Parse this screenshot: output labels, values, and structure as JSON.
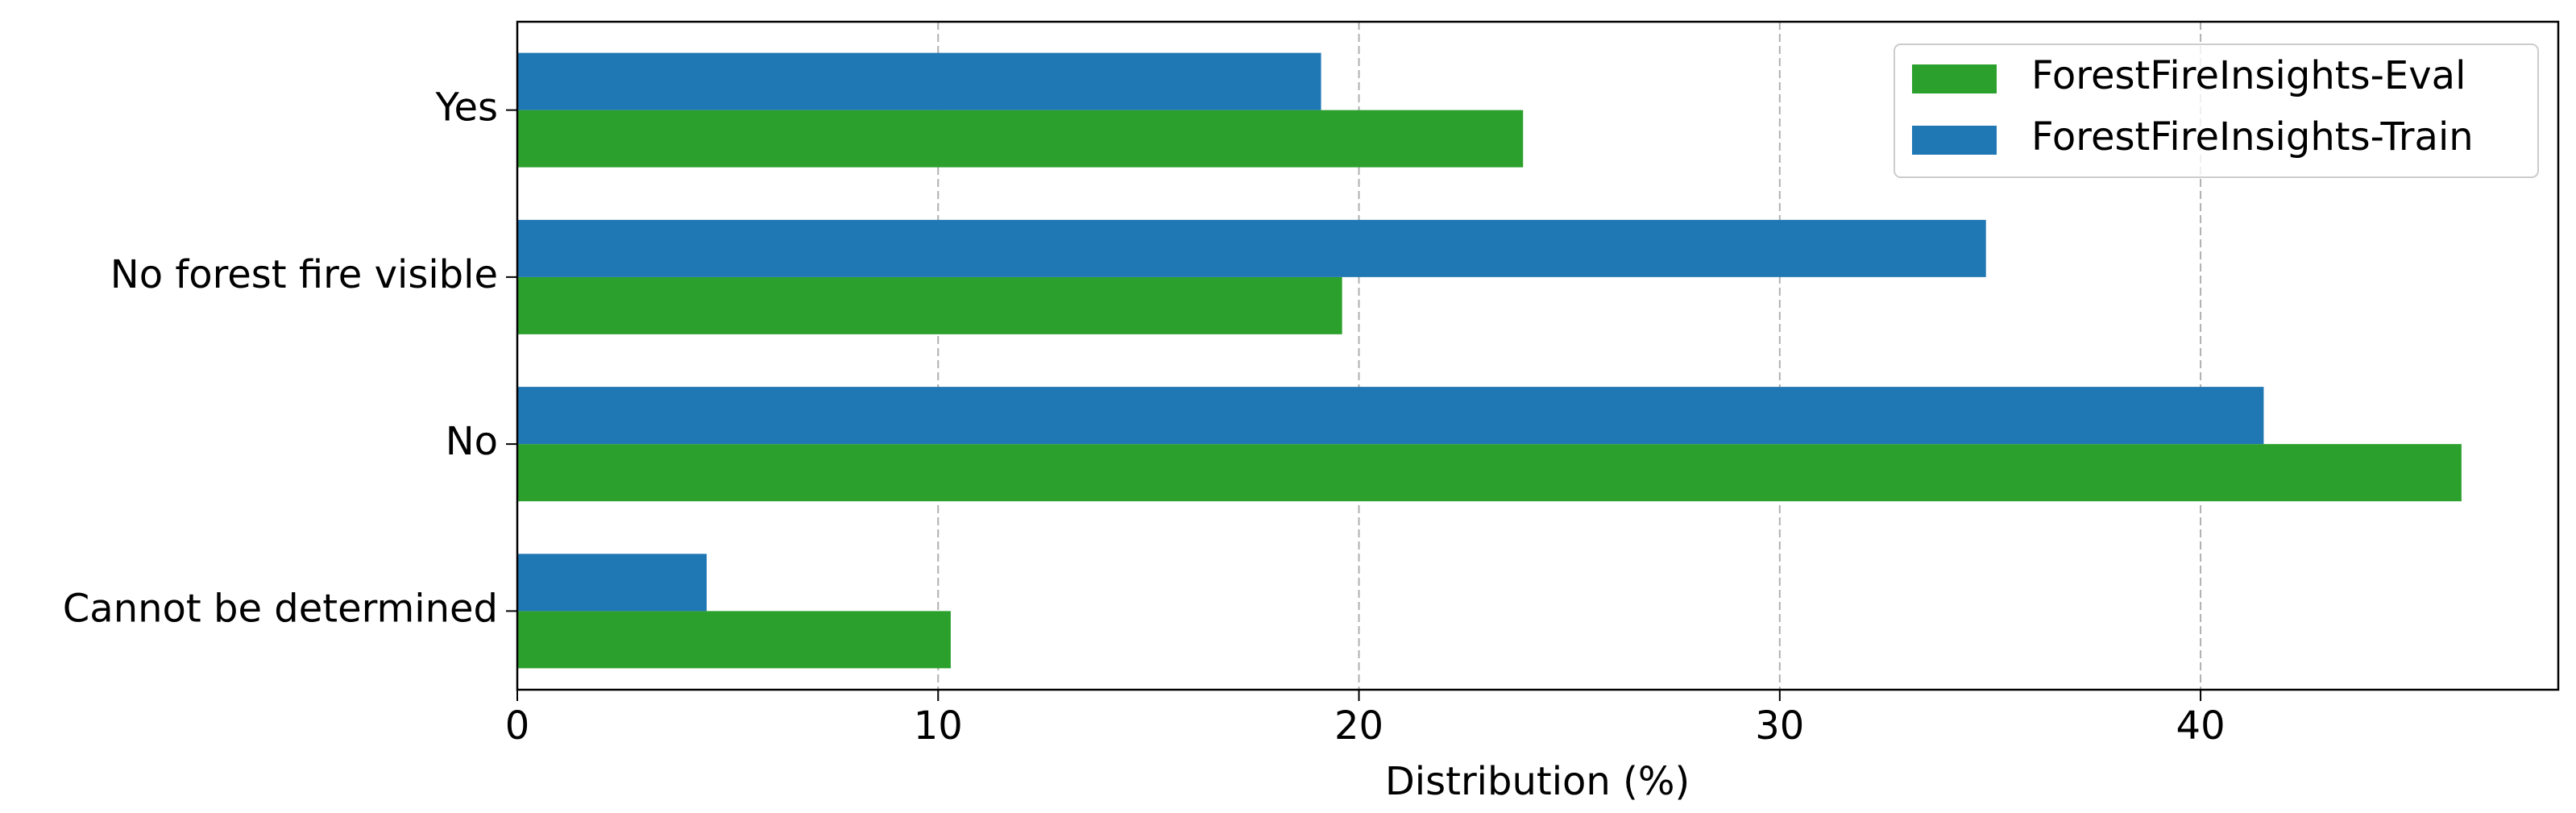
{
  "chart_data": {
    "type": "barh",
    "categories": [
      "Yes",
      "No forest fire visible",
      "No",
      "Cannot be determined"
    ],
    "series": [
      {
        "name": "ForestFireInsights-Eval",
        "color": "#2ca02c",
        "values": [
          23.9,
          19.6,
          46.2,
          10.3
        ]
      },
      {
        "name": "ForestFireInsights-Train",
        "color": "#1f77b4",
        "values": [
          19.1,
          34.9,
          41.5,
          4.5
        ]
      }
    ],
    "x_label": "Distribution (%)",
    "xlim": [
      0,
      48.5
    ],
    "xticks": [
      0,
      10,
      20,
      30,
      40
    ],
    "grid": true,
    "legend": "upper right"
  }
}
